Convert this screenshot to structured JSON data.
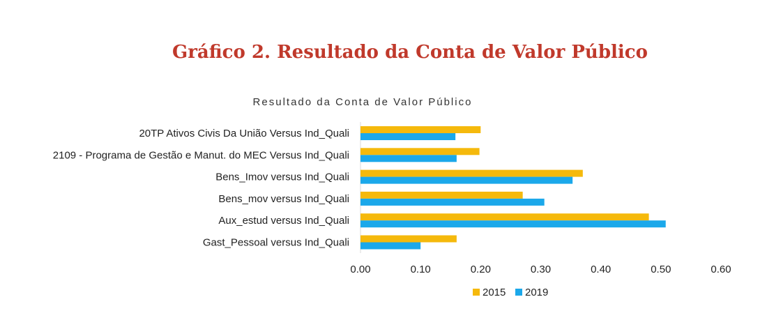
{
  "page": {
    "title": "Gráfico 2. Resultado da Conta de Valor Público"
  },
  "colors": {
    "title": "#c0392b",
    "series_2015": "#f5b90c",
    "series_2019": "#1ba8ea"
  },
  "chart_data": {
    "type": "bar",
    "orientation": "horizontal",
    "title": "Resultado da Conta de Valor Público",
    "categories": [
      "20TP Ativos Civis Da União Versus Ind_Quali",
      "2109 - Programa de Gestão e Manut. do MEC Versus Ind_Quali",
      "Bens_Imov versus Ind_Quali",
      "Bens_mov versus Ind_Quali",
      "Aux_estud versus Ind_Quali",
      "Gast_Pessoal versus Ind_Quali"
    ],
    "series": [
      {
        "name": "2015",
        "color": "#f5b90c",
        "values": [
          0.2,
          0.198,
          0.37,
          0.27,
          0.48,
          0.16
        ]
      },
      {
        "name": "2019",
        "color": "#1ba8ea",
        "values": [
          0.158,
          0.16,
          0.353,
          0.306,
          0.508,
          0.1
        ]
      }
    ],
    "xlim": [
      0,
      0.6
    ],
    "xticks": [
      "0.00",
      "0.10",
      "0.20",
      "0.30",
      "0.40",
      "0.50",
      "0.60"
    ],
    "grid": false,
    "legend_position": "bottom"
  }
}
